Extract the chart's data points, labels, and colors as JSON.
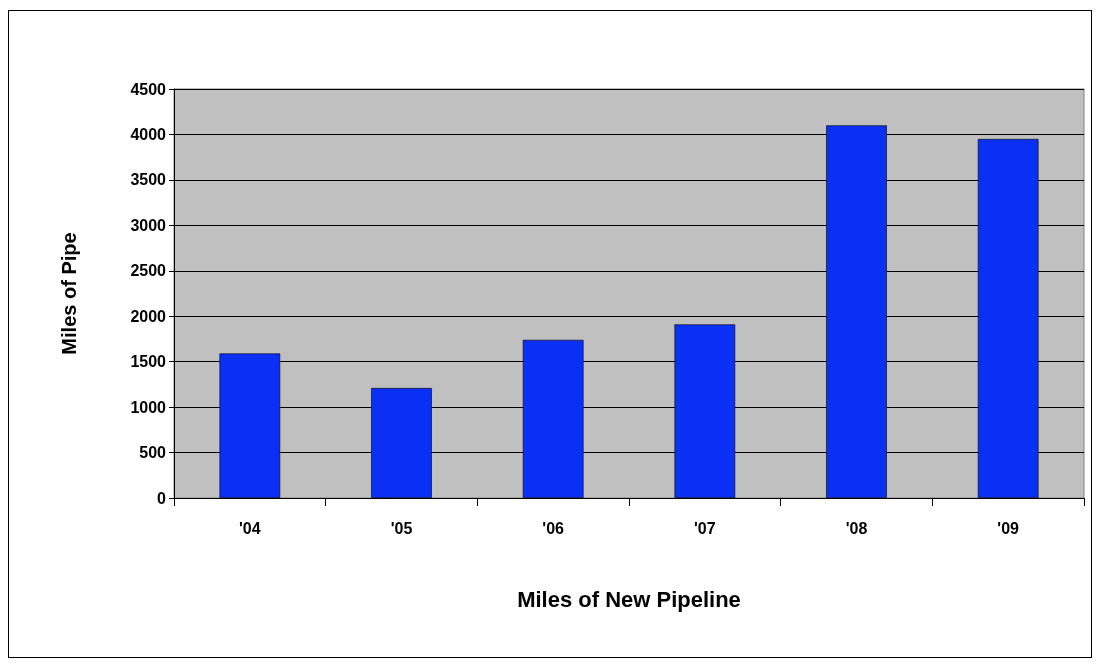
{
  "chart_data": {
    "type": "bar",
    "xlabel": "Miles of New Pipeline",
    "ylabel": "Miles of Pipe",
    "categories": [
      "'04",
      "'05",
      "'06",
      "'07",
      "'08",
      "'09"
    ],
    "values": [
      1590,
      1210,
      1740,
      1910,
      4100,
      3950
    ],
    "color": "#0a30f5",
    "ylim": [
      0,
      4500
    ],
    "yticks": [
      0,
      500,
      1000,
      1500,
      2000,
      2500,
      3000,
      3500,
      4000,
      4500
    ],
    "grid": "y"
  }
}
